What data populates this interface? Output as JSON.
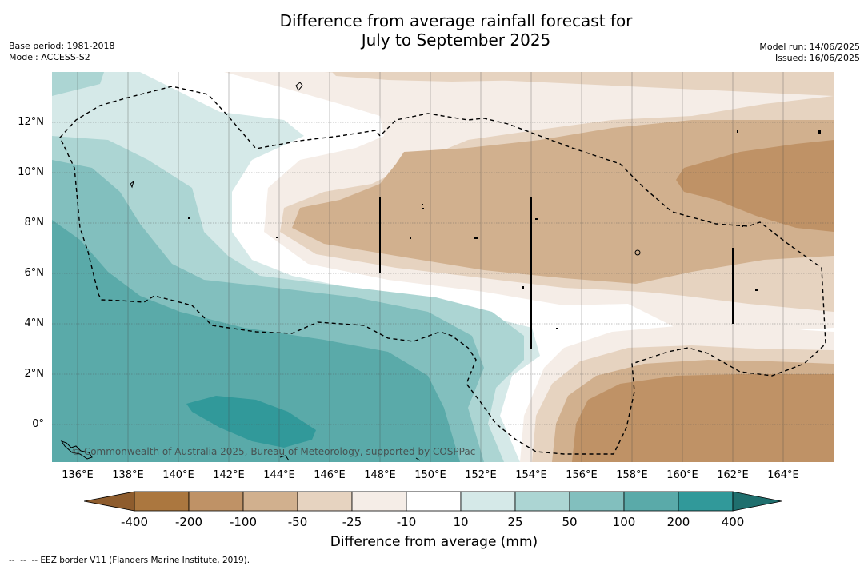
{
  "title_line1": "Difference from average rainfall forecast for",
  "title_line2": "July to September 2025",
  "base_period": "Base period: 1981-2018",
  "model": "Model: ACCESS-S2",
  "model_run": "Model run: 14/06/2025",
  "issued": "Issued: 16/06/2025",
  "copyright": "© Commonwealth of Australia 2025, Bureau of Meteorology, supported by COSPPac",
  "lat_labels": [
    "12°N",
    "10°N",
    "8°N",
    "6°N",
    "4°N",
    "2°N",
    "0°"
  ],
  "lon_labels": [
    "136°E",
    "138°E",
    "140°E",
    "142°E",
    "144°E",
    "146°E",
    "148°E",
    "150°E",
    "152°E",
    "154°E",
    "156°E",
    "158°E",
    "160°E",
    "162°E",
    "164°E"
  ],
  "colorbar": {
    "label": "Difference from average (mm)",
    "ticks": [
      "-400",
      "-200",
      "-100",
      "-50",
      "-25",
      "-10",
      "10",
      "25",
      "50",
      "100",
      "200",
      "400"
    ],
    "colors": {
      "lt_-400": "#8e5c2d",
      "-400_-200": "#ab773f",
      "-200_-100": "#bf9266",
      "-100_-50": "#d1b08e",
      "-50_-25": "#e6d3c0",
      "-25_-10": "#f5ede7",
      "-10_10": "#ffffff",
      "10_25": "#d5e9e8",
      "25_50": "#acd5d3",
      "50_100": "#82bfbe",
      "100_200": "#5aaaa9",
      "200_400": "#31999a",
      "gt_400": "#1f6f6e"
    }
  },
  "footnote": "--  --  -- EEZ border V11 (Flanders Marine Institute, 2019)."
}
